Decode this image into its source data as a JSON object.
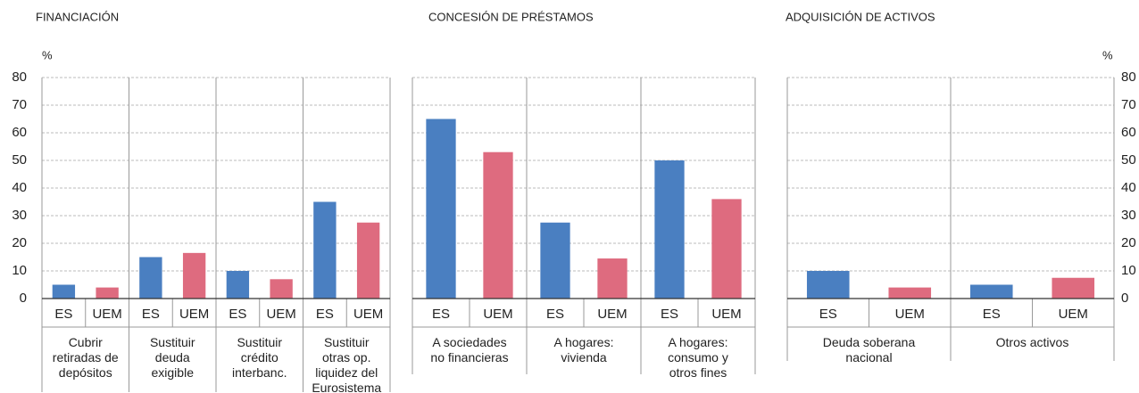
{
  "chart_data": [
    {
      "type": "bar",
      "title": "FINANCIACIÓN",
      "y_label": "%",
      "axis_position": "left",
      "categories": [
        "Cubrir retiradas de depósitos",
        "Sustituir deuda exigible",
        "Sustituir crédito interbanc.",
        "Sustituir otras op. liquidez del Eurosistema"
      ],
      "series": [
        {
          "name": "ES",
          "color": "#4a7fc1",
          "values": [
            5,
            15,
            10,
            35
          ]
        },
        {
          "name": "UEM",
          "color": "#de6b7f",
          "values": [
            4,
            16.5,
            7,
            27.5
          ]
        }
      ],
      "ylim": [
        0,
        80
      ],
      "yticks": [
        0,
        10,
        20,
        30,
        40,
        50,
        60,
        70,
        80
      ],
      "grid": true
    },
    {
      "type": "bar",
      "title": "CONCESIÓN DE PRÉSTAMOS",
      "categories": [
        "A sociedades no financieras",
        "A hogares: vivienda",
        "A hogares: consumo y otros fines"
      ],
      "series": [
        {
          "name": "ES",
          "color": "#4a7fc1",
          "values": [
            65,
            27.5,
            50
          ]
        },
        {
          "name": "UEM",
          "color": "#de6b7f",
          "values": [
            53,
            14.5,
            36
          ]
        }
      ],
      "ylim": [
        0,
        80
      ],
      "yticks": [
        0,
        10,
        20,
        30,
        40,
        50,
        60,
        70,
        80
      ],
      "grid": true
    },
    {
      "type": "bar",
      "title": "ADQUISICIÓN DE ACTIVOS",
      "y_label": "%",
      "axis_position": "right",
      "categories": [
        "Deuda soberana nacional",
        "Otros activos"
      ],
      "series": [
        {
          "name": "ES",
          "color": "#4a7fc1",
          "values": [
            10,
            5
          ]
        },
        {
          "name": "UEM",
          "color": "#de6b7f",
          "values": [
            4,
            7.5
          ]
        }
      ],
      "ylim": [
        0,
        80
      ],
      "yticks": [
        0,
        10,
        20,
        30,
        40,
        50,
        60,
        70,
        80
      ],
      "grid": true
    }
  ]
}
